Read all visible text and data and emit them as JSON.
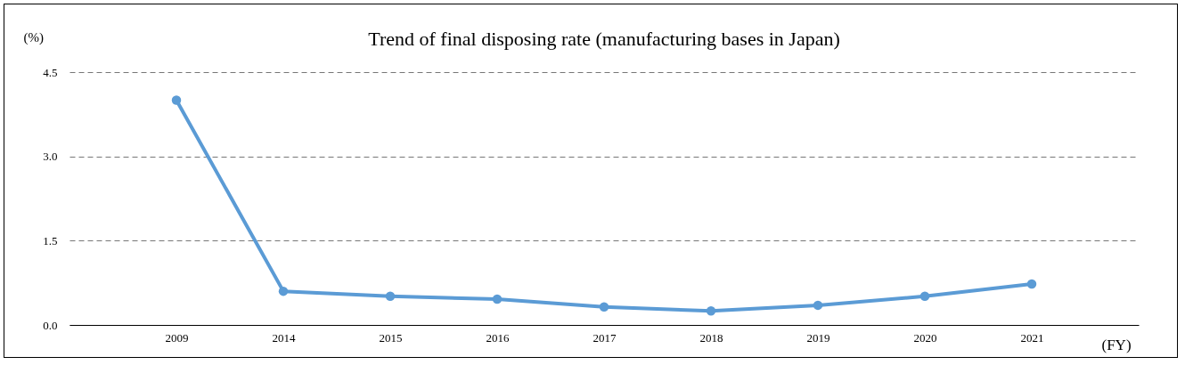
{
  "chart_data": {
    "type": "line",
    "title": "Trend of final disposing rate (manufacturing bases in Japan)",
    "ylabel": "(%)",
    "xlabel": "(FY)",
    "categories": [
      "2009",
      "2014",
      "2015",
      "2016",
      "2017",
      "2018",
      "2019",
      "2020",
      "2021"
    ],
    "series": [
      {
        "color": "#5b9bd5",
        "values": [
          4.0,
          0.6,
          0.51,
          0.46,
          0.32,
          0.25,
          0.35,
          0.51,
          0.73
        ]
      }
    ],
    "ylim": [
      0,
      4.5
    ],
    "yticks": [
      {
        "value": 0,
        "label": "0.0"
      },
      1.5,
      {
        "value": 3,
        "label": "3.0"
      },
      4.5
    ],
    "grid": "y",
    "marker": "circle",
    "line_style": "solid"
  }
}
